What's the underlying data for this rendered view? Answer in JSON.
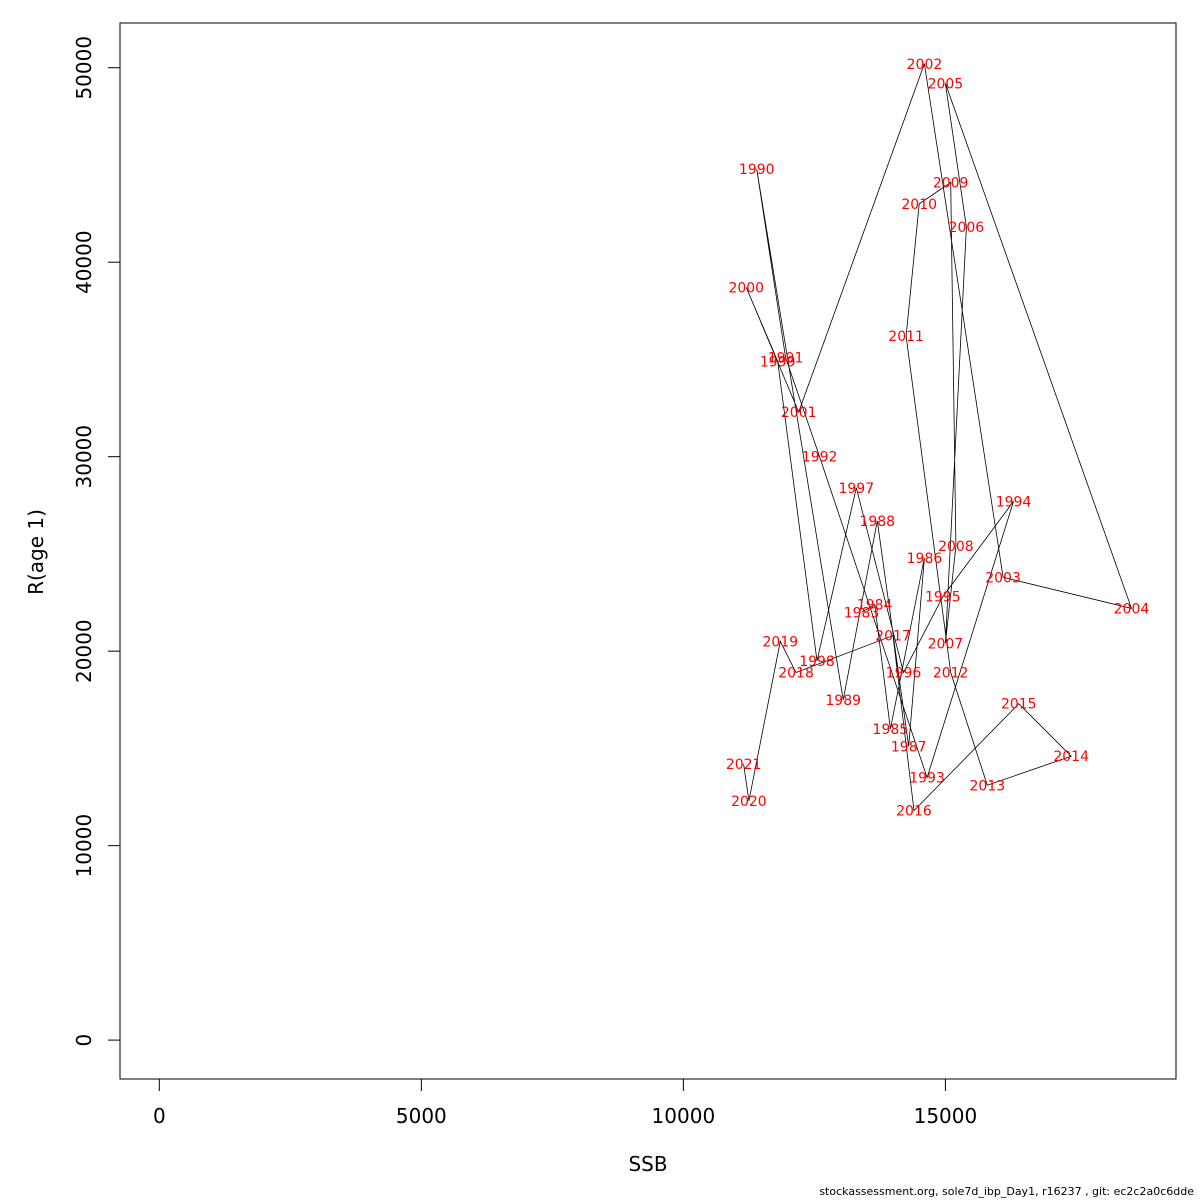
{
  "chart_data": {
    "type": "line",
    "title": "",
    "xlabel": "SSB",
    "ylabel": "R(age 1)",
    "xlim": [
      -750,
      19400
    ],
    "ylim": [
      -2000,
      52300
    ],
    "xticks": [
      0,
      5000,
      10000,
      15000
    ],
    "yticks": [
      0,
      10000,
      20000,
      30000,
      40000,
      50000
    ],
    "grid": false,
    "legend": "none",
    "line_color": "#000000",
    "label_color": "#ff0000",
    "points": [
      {
        "year": "1983",
        "ssb": 13400,
        "r": 22000
      },
      {
        "year": "1984",
        "ssb": 13650,
        "r": 22400
      },
      {
        "year": "1985",
        "ssb": 13950,
        "r": 16000
      },
      {
        "year": "1986",
        "ssb": 14600,
        "r": 24800
      },
      {
        "year": "1987",
        "ssb": 14300,
        "r": 15100
      },
      {
        "year": "1988",
        "ssb": 13700,
        "r": 26700
      },
      {
        "year": "1989",
        "ssb": 13050,
        "r": 17500
      },
      {
        "year": "1990",
        "ssb": 11400,
        "r": 44800
      },
      {
        "year": "1991",
        "ssb": 11950,
        "r": 35100
      },
      {
        "year": "1992",
        "ssb": 12600,
        "r": 30000
      },
      {
        "year": "1993",
        "ssb": 14650,
        "r": 13500
      },
      {
        "year": "1994",
        "ssb": 16300,
        "r": 27700
      },
      {
        "year": "1995",
        "ssb": 14950,
        "r": 22800
      },
      {
        "year": "1996",
        "ssb": 14200,
        "r": 18900
      },
      {
        "year": "1997",
        "ssb": 13300,
        "r": 28400
      },
      {
        "year": "1998",
        "ssb": 12550,
        "r": 19500
      },
      {
        "year": "1999",
        "ssb": 11800,
        "r": 34900
      },
      {
        "year": "2000",
        "ssb": 11200,
        "r": 38700
      },
      {
        "year": "2001",
        "ssb": 12200,
        "r": 32300
      },
      {
        "year": "2002",
        "ssb": 14600,
        "r": 50200
      },
      {
        "year": "2003",
        "ssb": 16100,
        "r": 23800
      },
      {
        "year": "2004",
        "ssb": 18550,
        "r": 22200
      },
      {
        "year": "2005",
        "ssb": 15000,
        "r": 49200
      },
      {
        "year": "2006",
        "ssb": 15400,
        "r": 41800
      },
      {
        "year": "2007",
        "ssb": 15000,
        "r": 20400
      },
      {
        "year": "2008",
        "ssb": 15200,
        "r": 25400
      },
      {
        "year": "2009",
        "ssb": 15100,
        "r": 44100
      },
      {
        "year": "2010",
        "ssb": 14500,
        "r": 43000
      },
      {
        "year": "2011",
        "ssb": 14250,
        "r": 36200
      },
      {
        "year": "2012",
        "ssb": 15100,
        "r": 18900
      },
      {
        "year": "2013",
        "ssb": 15800,
        "r": 13100
      },
      {
        "year": "2014",
        "ssb": 17400,
        "r": 14600
      },
      {
        "year": "2015",
        "ssb": 16400,
        "r": 17300
      },
      {
        "year": "2016",
        "ssb": 14400,
        "r": 11800
      },
      {
        "year": "2017",
        "ssb": 14000,
        "r": 20800
      },
      {
        "year": "2018",
        "ssb": 12150,
        "r": 18900
      },
      {
        "year": "2019",
        "ssb": 11850,
        "r": 20500
      },
      {
        "year": "2020",
        "ssb": 11250,
        "r": 12300
      },
      {
        "year": "2021",
        "ssb": 11150,
        "r": 14200
      }
    ]
  },
  "footer": {
    "text": "stockassessment.org, sole7d_ibp_Day1, r16237 , git: ec2c2a0c6dde"
  }
}
